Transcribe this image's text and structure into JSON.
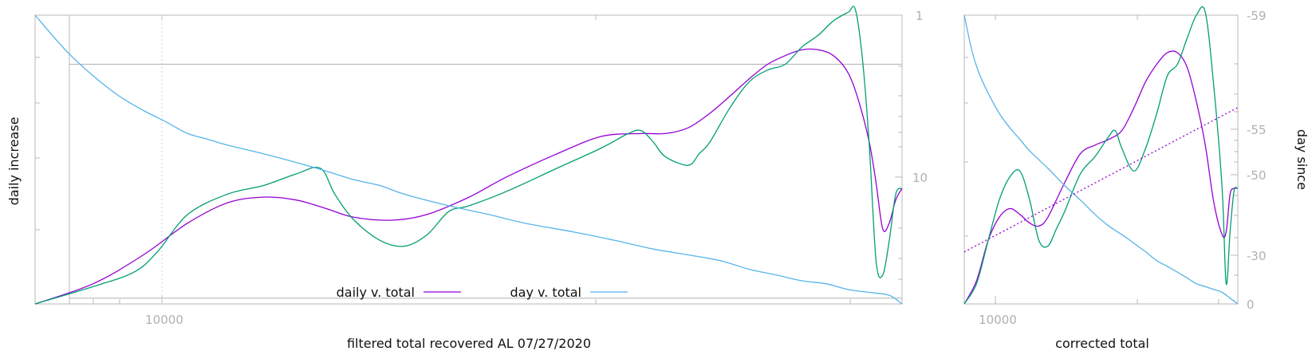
{
  "colors": {
    "daily": "#9400d3",
    "daily_raw": "#009e73",
    "day": "#56b4e9",
    "frame": "#b8b8b8",
    "tick_text": "#b0b0b0"
  },
  "chart_data": [
    {
      "type": "line",
      "title": "",
      "xlabel": "filtered total recovered AL 07/27/2020",
      "ylabel": "daily increase",
      "x_scale": "log",
      "x_tick_labels": [
        "10000"
      ],
      "y2_scale": "log",
      "y2_tick_labels": [
        "1",
        "10"
      ],
      "legend": {
        "placement": "bottom-center",
        "entries": [
          "daily v. total",
          "day v. total"
        ]
      },
      "series": [
        {
          "name": "daily v. total",
          "x": [
            6000,
            7000,
            8000,
            9000,
            10000,
            11000,
            12000,
            13000,
            14000,
            15500,
            17000,
            19000,
            21000,
            24000,
            27000,
            30000,
            32000,
            34000,
            36000,
            38000,
            40000,
            42000,
            44000,
            46000,
            48000,
            50000,
            52000,
            53500,
            55000,
            56000,
            57000,
            58000,
            59000,
            60000
          ],
          "y": [
            0,
            0.07,
            0.17,
            0.28,
            0.35,
            0.37,
            0.36,
            0.33,
            0.3,
            0.29,
            0.31,
            0.37,
            0.44,
            0.52,
            0.58,
            0.59,
            0.59,
            0.61,
            0.66,
            0.72,
            0.78,
            0.83,
            0.86,
            0.88,
            0.88,
            0.86,
            0.8,
            0.7,
            0.56,
            0.42,
            0.26,
            0.28,
            0.36,
            0.4
          ]
        },
        {
          "x": [
            6000,
            7000,
            7800,
            8300,
            9000,
            10000,
            11000,
            12000,
            12800,
            13300,
            14000,
            15000,
            16000,
            17000,
            18000,
            19000,
            21000,
            24000,
            27000,
            29000,
            30000,
            31000,
            32000,
            34000,
            35000,
            36000,
            38000,
            40000,
            42000,
            44000,
            46000,
            48000,
            50000,
            52000,
            53000,
            54000,
            55000,
            56000,
            57000,
            58000,
            59000,
            60000
          ],
          "y": [
            0,
            0.06,
            0.11,
            0.18,
            0.31,
            0.38,
            0.41,
            0.45,
            0.47,
            0.38,
            0.29,
            0.22,
            0.2,
            0.24,
            0.32,
            0.34,
            0.39,
            0.47,
            0.54,
            0.59,
            0.6,
            0.56,
            0.51,
            0.48,
            0.52,
            0.56,
            0.68,
            0.77,
            0.81,
            0.83,
            0.89,
            0.93,
            0.98,
            1.01,
            1.02,
            0.85,
            0.55,
            0.15,
            0.1,
            0.22,
            0.38,
            0.4
          ]
        },
        {
          "name": "day v. total",
          "x": [
            6000,
            6500,
            7000,
            7500,
            8000,
            8500,
            9000,
            9500,
            10000,
            11000,
            12000,
            13000,
            14000,
            15000,
            16000,
            18000,
            20000,
            22000,
            25000,
            28000,
            31000,
            34000,
            37000,
            40000,
            43000,
            46000,
            49000,
            52000,
            55000,
            58000,
            60000
          ],
          "y": [
            1.0,
            0.88,
            0.79,
            0.72,
            0.67,
            0.63,
            0.59,
            0.57,
            0.55,
            0.52,
            0.49,
            0.46,
            0.43,
            0.41,
            0.38,
            0.34,
            0.31,
            0.28,
            0.25,
            0.22,
            0.19,
            0.17,
            0.15,
            0.12,
            0.1,
            0.08,
            0.07,
            0.05,
            0.04,
            0.03,
            0.0
          ]
        }
      ],
      "reference_lines": [
        0.83,
        0.02
      ]
    },
    {
      "type": "line",
      "title": "",
      "xlabel": "corrected total",
      "ylabel": "day since",
      "x_scale": "log",
      "x_tick_labels": [
        "10000"
      ],
      "y2_tick_labels": [
        "-59",
        "-55",
        "-50",
        "-30",
        "0"
      ],
      "series": [
        {
          "x": [
            9000,
            9500,
            10000,
            10500,
            11000,
            11500,
            12000,
            12500,
            13000,
            14000,
            15000,
            16000,
            17000,
            18000,
            19000,
            20000,
            21000,
            22000,
            23000,
            24000,
            25000,
            26000,
            27000,
            28000,
            28500,
            29000,
            29500,
            30000
          ],
          "y": [
            0,
            0.08,
            0.22,
            0.3,
            0.33,
            0.31,
            0.28,
            0.27,
            0.3,
            0.42,
            0.52,
            0.55,
            0.57,
            0.6,
            0.68,
            0.77,
            0.83,
            0.87,
            0.87,
            0.82,
            0.7,
            0.55,
            0.35,
            0.24,
            0.25,
            0.38,
            0.4,
            0.4
          ]
        },
        {
          "x": [
            9000,
            9500,
            10000,
            10500,
            11000,
            11500,
            12000,
            12500,
            13000,
            13500,
            14000,
            15000,
            16000,
            17000,
            17500,
            18000,
            19000,
            20000,
            21000,
            22000,
            23000,
            24000,
            25000,
            26000,
            27000,
            28000,
            28500,
            29000,
            29500,
            30000
          ],
          "y": [
            0,
            0.07,
            0.22,
            0.36,
            0.44,
            0.46,
            0.36,
            0.22,
            0.2,
            0.26,
            0.32,
            0.45,
            0.51,
            0.58,
            0.6,
            0.54,
            0.46,
            0.54,
            0.66,
            0.79,
            0.83,
            0.92,
            1.0,
            1.01,
            0.75,
            0.4,
            0.07,
            0.25,
            0.39,
            0.4
          ]
        },
        {
          "x": [
            9000,
            9300,
            9600,
            10000,
            10500,
            11000,
            11500,
            12000,
            13000,
            14000,
            15000,
            16000,
            17000,
            18000,
            19000,
            20000,
            21000,
            22000,
            23000,
            24000,
            25000,
            26000,
            27000,
            28000,
            29000,
            30000
          ],
          "y": [
            1.0,
            0.88,
            0.8,
            0.73,
            0.66,
            0.61,
            0.57,
            0.53,
            0.47,
            0.41,
            0.36,
            0.31,
            0.27,
            0.24,
            0.21,
            0.18,
            0.15,
            0.13,
            0.11,
            0.09,
            0.07,
            0.06,
            0.05,
            0.04,
            0.02,
            0.0
          ]
        },
        {
          "x": [
            9000,
            30000
          ],
          "y": [
            0.18,
            0.68
          ],
          "dotted": true
        }
      ]
    }
  ]
}
